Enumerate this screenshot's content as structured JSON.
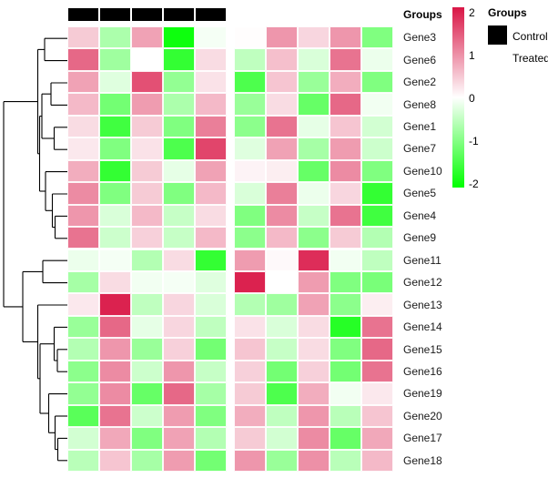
{
  "chart_data": {
    "type": "heatmap",
    "annotation_label": "Groups",
    "rows": [
      "Gene3",
      "Gene6",
      "Gene2",
      "Gene8",
      "Gene1",
      "Gene7",
      "Gene10",
      "Gene5",
      "Gene4",
      "Gene9",
      "Gene11",
      "Gene12",
      "Gene13",
      "Gene14",
      "Gene15",
      "Gene16",
      "Gene19",
      "Gene20",
      "Gene17",
      "Gene18"
    ],
    "column_annotation": [
      "Control",
      "Control",
      "Control",
      "Control",
      "Control",
      "Treated",
      "Treated",
      "Treated",
      "Treated",
      "Treated"
    ],
    "values": [
      [
        0.45,
        -0.65,
        0.8,
        -1.9,
        -0.08,
        0.02,
        0.9,
        0.35,
        0.9,
        -1.0
      ],
      [
        1.3,
        -0.75,
        0.0,
        -1.6,
        0.3,
        -0.5,
        0.55,
        -0.3,
        1.2,
        -0.15
      ],
      [
        0.8,
        -0.25,
        1.5,
        -0.85,
        0.25,
        -1.4,
        0.5,
        -0.8,
        0.7,
        -1.0
      ],
      [
        0.6,
        -1.1,
        0.85,
        -0.65,
        0.6,
        -0.8,
        0.3,
        -1.2,
        1.3,
        -0.1
      ],
      [
        0.3,
        -1.5,
        0.45,
        -1.0,
        1.1,
        -0.9,
        1.2,
        -0.2,
        0.5,
        -0.35
      ],
      [
        0.2,
        -1.0,
        0.25,
        -1.4,
        1.6,
        -0.25,
        0.8,
        -0.7,
        0.85,
        -0.4
      ],
      [
        0.7,
        -1.6,
        0.45,
        -0.2,
        0.8,
        0.1,
        0.15,
        -1.2,
        1.0,
        -1.0
      ],
      [
        1.0,
        -1.0,
        0.45,
        -1.0,
        0.6,
        -0.3,
        1.1,
        -0.15,
        0.35,
        -1.6
      ],
      [
        0.9,
        -0.3,
        0.6,
        -0.45,
        0.3,
        -1.0,
        1.0,
        -0.45,
        1.2,
        -1.5
      ],
      [
        1.2,
        -0.4,
        0.4,
        -0.45,
        0.6,
        -0.9,
        0.6,
        -0.9,
        0.45,
        -0.6
      ],
      [
        -0.15,
        -0.08,
        -0.6,
        0.3,
        -1.6,
        0.85,
        0.05,
        1.8,
        -0.1,
        -0.5
      ],
      [
        -0.7,
        0.3,
        -0.1,
        -0.08,
        -0.25,
        1.9,
        0.0,
        0.85,
        -1.0,
        -1.05
      ],
      [
        0.2,
        1.9,
        -0.5,
        0.35,
        -0.3,
        -0.6,
        -0.75,
        0.8,
        -0.9,
        0.15
      ],
      [
        -0.8,
        1.3,
        -0.2,
        0.35,
        -0.5,
        0.25,
        -0.3,
        0.3,
        -1.7,
        1.2
      ],
      [
        -0.6,
        0.9,
        -0.8,
        0.4,
        -1.1,
        0.5,
        -0.45,
        0.3,
        -1.0,
        1.3
      ],
      [
        -0.9,
        1.0,
        -0.4,
        0.9,
        -0.45,
        0.4,
        -1.1,
        0.4,
        -1.1,
        1.2
      ],
      [
        -0.85,
        1.0,
        -1.2,
        1.3,
        -0.7,
        0.45,
        -1.4,
        0.7,
        -0.1,
        0.2
      ],
      [
        -1.3,
        1.2,
        -0.4,
        0.85,
        -1.0,
        0.7,
        -0.5,
        0.9,
        -0.55,
        0.5
      ],
      [
        -0.35,
        0.75,
        -1.0,
        0.8,
        -0.6,
        0.45,
        -0.35,
        1.0,
        -1.2,
        0.75
      ],
      [
        -0.55,
        0.5,
        -0.7,
        0.85,
        -1.1,
        0.9,
        -0.8,
        0.95,
        -0.55,
        0.6
      ]
    ],
    "scale": {
      "min": -2,
      "max": 2,
      "tick_labels": [
        "2",
        "1",
        "0",
        "-1",
        "-2"
      ],
      "tick_values": [
        2,
        1,
        0,
        -1,
        -2
      ],
      "color_max": "#D91646",
      "color_mid": "#FFFFFF",
      "color_min": "#00FF00"
    },
    "legend": {
      "title": "Groups",
      "items": [
        {
          "label": "Control",
          "color": "#000000"
        },
        {
          "label": "Treated",
          "color": "#FFFFFF"
        }
      ]
    },
    "annotation_colors": {
      "Control": "#000000",
      "Treated": "#FFFFFF"
    }
  },
  "dendrogram": {
    "color": "#000000",
    "segments": [
      [
        49,
        42.2,
        74,
        42.2
      ],
      [
        49,
        66.6,
        74,
        66.6
      ],
      [
        49,
        42.2,
        49,
        66.6
      ],
      [
        56,
        91,
        74,
        91
      ],
      [
        56,
        115.4,
        74,
        115.4
      ],
      [
        56,
        91,
        56,
        115.4
      ],
      [
        59.5,
        139.8,
        74,
        139.8
      ],
      [
        59.5,
        164.2,
        74,
        164.2
      ],
      [
        59.5,
        139.8,
        59.5,
        164.2
      ],
      [
        46,
        103.2,
        56,
        103.2
      ],
      [
        46,
        152,
        59.5,
        152
      ],
      [
        46,
        103.2,
        46,
        152
      ],
      [
        60.5,
        237.4,
        74,
        237.4
      ],
      [
        60.5,
        261.8,
        74,
        261.8
      ],
      [
        60.5,
        237.4,
        60.5,
        261.8
      ],
      [
        57.5,
        213,
        74,
        213
      ],
      [
        57.5,
        249.6,
        60.5,
        249.6
      ],
      [
        57.5,
        213,
        57.5,
        249.6
      ],
      [
        50,
        188.6,
        74,
        188.6
      ],
      [
        50,
        231.3,
        57.5,
        231.3
      ],
      [
        50,
        188.6,
        50,
        231.3
      ],
      [
        43.5,
        127.6,
        46,
        127.6
      ],
      [
        43.5,
        210,
        50,
        210
      ],
      [
        43.5,
        127.6,
        43.5,
        210
      ],
      [
        41.5,
        54.4,
        49,
        54.4
      ],
      [
        41.5,
        168.8,
        43.5,
        168.8
      ],
      [
        41.5,
        54.4,
        41.5,
        168.8
      ],
      [
        47,
        286.2,
        74,
        286.2
      ],
      [
        47,
        310.6,
        74,
        310.6
      ],
      [
        47,
        286.2,
        47,
        310.6
      ],
      [
        41.5,
        335,
        74,
        335
      ],
      [
        63,
        383.8,
        74,
        383.8
      ],
      [
        63,
        408.2,
        74,
        408.2
      ],
      [
        63,
        383.8,
        63,
        408.2
      ],
      [
        59.5,
        359.4,
        74,
        359.4
      ],
      [
        59.5,
        396,
        63,
        396
      ],
      [
        59.5,
        359.4,
        59.5,
        396
      ],
      [
        63.5,
        481.4,
        74,
        481.4
      ],
      [
        63.5,
        505.8,
        74,
        505.8
      ],
      [
        63.5,
        481.4,
        63.5,
        505.8
      ],
      [
        60.5,
        457,
        74,
        457
      ],
      [
        60.5,
        493.6,
        63.5,
        493.6
      ],
      [
        60.5,
        457,
        60.5,
        493.6
      ],
      [
        53.5,
        432.6,
        74,
        432.6
      ],
      [
        53.5,
        475.3,
        60.5,
        475.3
      ],
      [
        53.5,
        432.6,
        53.5,
        475.3
      ],
      [
        44,
        377.7,
        59.5,
        377.7
      ],
      [
        44,
        454,
        53.5,
        454
      ],
      [
        44,
        377.7,
        44,
        454
      ],
      [
        41.5,
        415.8,
        44,
        415.8
      ],
      [
        41.5,
        335,
        41.5,
        415.8
      ],
      [
        25,
        298.4,
        47,
        298.4
      ],
      [
        25,
        375.4,
        41.5,
        375.4
      ],
      [
        25,
        298.4,
        25,
        375.4
      ],
      [
        4,
        111.6,
        41.5,
        111.6
      ],
      [
        4,
        336.9,
        25,
        336.9
      ],
      [
        4,
        111.6,
        4,
        336.9
      ]
    ]
  }
}
